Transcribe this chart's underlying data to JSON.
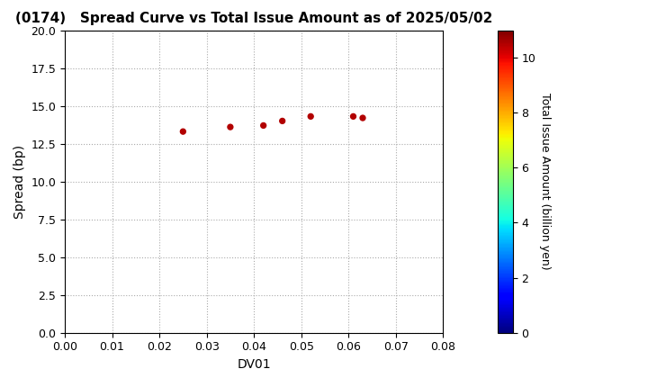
{
  "title": "(0174)   Spread Curve vs Total Issue Amount as of 2025/05/02",
  "xlabel": "DV01",
  "ylabel": "Spread (bp)",
  "colorbar_label": "Total Issue Amount (billion yen)",
  "xlim": [
    0.0,
    0.08
  ],
  "ylim": [
    0.0,
    20.0
  ],
  "xticks": [
    0.0,
    0.01,
    0.02,
    0.03,
    0.04,
    0.05,
    0.06,
    0.07,
    0.08
  ],
  "yticks": [
    0.0,
    2.5,
    5.0,
    7.5,
    10.0,
    12.5,
    15.0,
    17.5,
    20.0
  ],
  "colorbar_ticks": [
    0,
    2,
    4,
    6,
    8,
    10
  ],
  "colorbar_range": [
    0,
    11
  ],
  "scatter_x": [
    0.025,
    0.035,
    0.042,
    0.046,
    0.052,
    0.061,
    0.063
  ],
  "scatter_y": [
    13.3,
    13.6,
    13.7,
    14.0,
    14.3,
    14.3,
    14.2
  ],
  "scatter_colors": [
    10.5,
    10.5,
    10.5,
    10.5,
    10.5,
    10.5,
    10.5
  ],
  "marker_size": 18,
  "background_color": "#ffffff",
  "grid_color": "#aaaaaa",
  "title_fontsize": 11,
  "label_fontsize": 10,
  "tick_fontsize": 9,
  "colorbar_label_fontsize": 9
}
